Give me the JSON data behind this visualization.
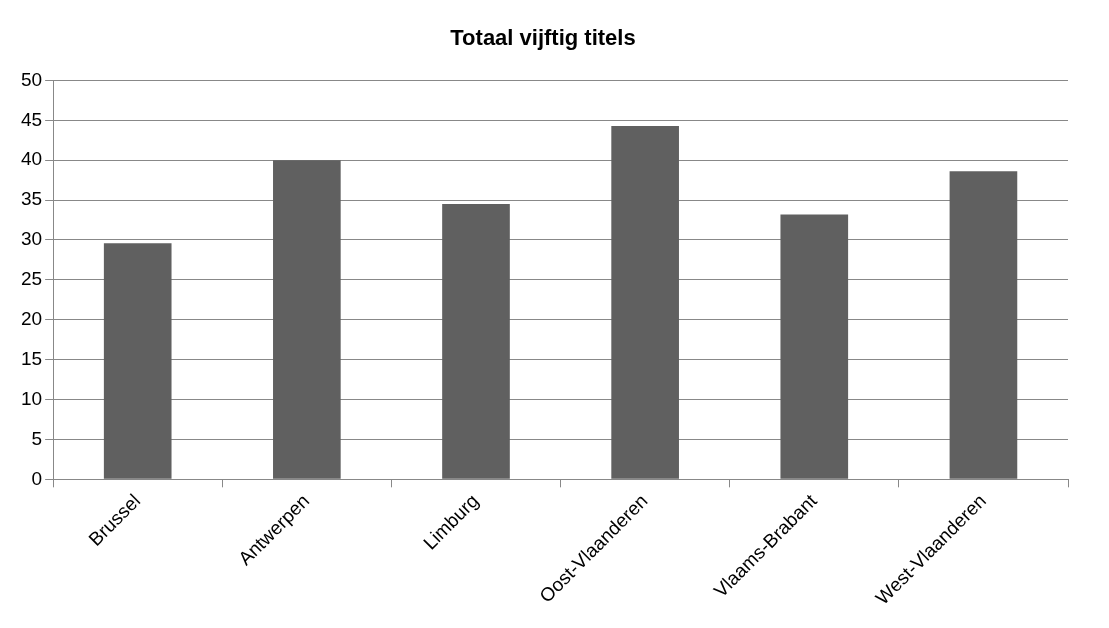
{
  "chart_data": {
    "type": "bar",
    "title": "Totaal vijftig titels",
    "categories": [
      "Brussel",
      "Antwerpen",
      "Limburg",
      "Oost-Vlaanderen",
      "Vlaams-Brabant",
      "West-Vlaanderen"
    ],
    "values": [
      29.6,
      40.0,
      34.5,
      44.3,
      33.2,
      38.6
    ],
    "color": "#606060",
    "ylim": [
      0,
      50
    ],
    "yticks": [
      0,
      5,
      10,
      15,
      20,
      25,
      30,
      35,
      40,
      45,
      50
    ],
    "grid": "y",
    "legend": false
  }
}
